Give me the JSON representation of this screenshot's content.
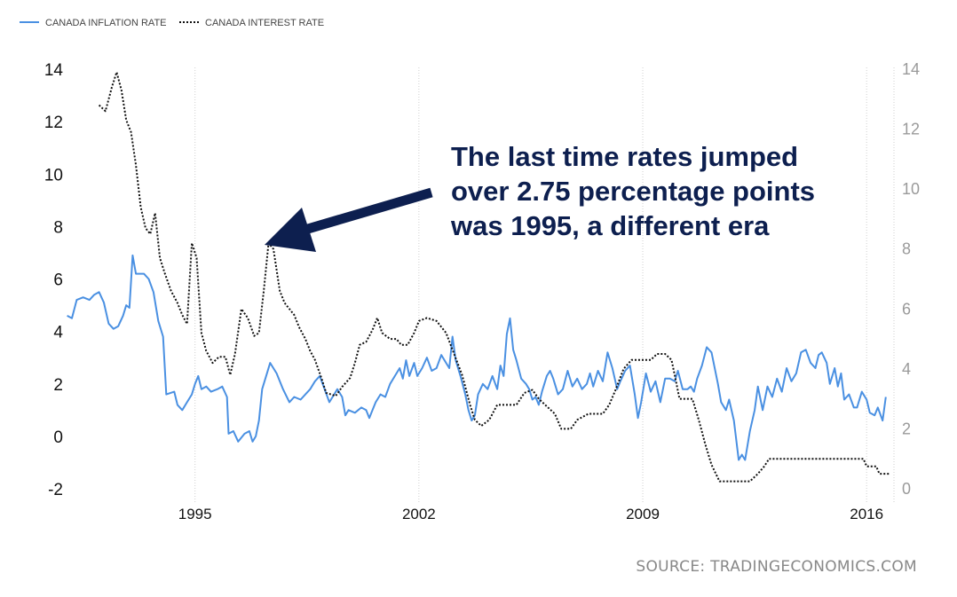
{
  "chart_data": {
    "type": "line",
    "legend_position": "top-left",
    "grid": true,
    "x_ticks": [
      "1995",
      "2002",
      "2009",
      "2016"
    ],
    "y_left": {
      "range": [
        -2,
        14
      ],
      "ticks": [
        "-2",
        "0",
        "2",
        "4",
        "6",
        "8",
        "10",
        "12",
        "14"
      ]
    },
    "y_right": {
      "range": [
        0,
        14
      ],
      "ticks": [
        "0",
        "2",
        "4",
        "6",
        "8",
        "10",
        "12",
        "14"
      ]
    },
    "x_range": [
      1990.9,
      2016.8
    ],
    "series": [
      {
        "name": "CANADA INFLATION RATE",
        "axis": "left",
        "color": "#4a90e2",
        "style": "solid",
        "points": [
          [
            1991.0,
            4.6
          ],
          [
            1991.15,
            4.5
          ],
          [
            1991.3,
            5.2
          ],
          [
            1991.5,
            5.3
          ],
          [
            1991.7,
            5.2
          ],
          [
            1991.85,
            5.4
          ],
          [
            1992.0,
            5.5
          ],
          [
            1992.15,
            5.1
          ],
          [
            1992.3,
            4.3
          ],
          [
            1992.45,
            4.1
          ],
          [
            1992.6,
            4.2
          ],
          [
            1992.75,
            4.6
          ],
          [
            1992.85,
            5.0
          ],
          [
            1992.95,
            4.9
          ],
          [
            1993.05,
            6.9
          ],
          [
            1993.15,
            6.2
          ],
          [
            1993.4,
            6.2
          ],
          [
            1993.55,
            6.0
          ],
          [
            1993.7,
            5.5
          ],
          [
            1993.85,
            4.4
          ],
          [
            1994.0,
            3.8
          ],
          [
            1994.1,
            1.6
          ],
          [
            1994.35,
            1.7
          ],
          [
            1994.45,
            1.2
          ],
          [
            1994.6,
            1.0
          ],
          [
            1994.75,
            1.3
          ],
          [
            1994.9,
            1.6
          ],
          [
            1995.0,
            2.0
          ],
          [
            1995.1,
            2.3
          ],
          [
            1995.2,
            1.8
          ],
          [
            1995.35,
            1.9
          ],
          [
            1995.5,
            1.7
          ],
          [
            1995.7,
            1.8
          ],
          [
            1995.85,
            1.9
          ],
          [
            1996.0,
            1.5
          ],
          [
            1996.05,
            0.1
          ],
          [
            1996.2,
            0.2
          ],
          [
            1996.35,
            -0.2
          ],
          [
            1996.55,
            0.1
          ],
          [
            1996.7,
            0.2
          ],
          [
            1996.8,
            -0.2
          ],
          [
            1996.9,
            0.0
          ],
          [
            1997.0,
            0.6
          ],
          [
            1997.1,
            1.8
          ],
          [
            1997.25,
            2.4
          ],
          [
            1997.35,
            2.8
          ],
          [
            1997.55,
            2.4
          ],
          [
            1997.75,
            1.8
          ],
          [
            1997.95,
            1.3
          ],
          [
            1998.1,
            1.5
          ],
          [
            1998.3,
            1.4
          ],
          [
            1998.45,
            1.6
          ],
          [
            1998.6,
            1.8
          ],
          [
            1998.75,
            2.1
          ],
          [
            1998.9,
            2.3
          ],
          [
            1999.05,
            1.8
          ],
          [
            1999.2,
            1.3
          ],
          [
            1999.35,
            1.6
          ],
          [
            1999.45,
            1.8
          ],
          [
            1999.6,
            1.5
          ],
          [
            1999.7,
            0.8
          ],
          [
            1999.8,
            1.0
          ],
          [
            2000.0,
            0.9
          ],
          [
            2000.2,
            1.1
          ],
          [
            2000.35,
            1.0
          ],
          [
            2000.45,
            0.7
          ],
          [
            2000.55,
            1.0
          ],
          [
            2000.65,
            1.3
          ],
          [
            2000.8,
            1.6
          ],
          [
            2000.95,
            1.5
          ],
          [
            2001.1,
            2.0
          ],
          [
            2001.25,
            2.3
          ],
          [
            2001.4,
            2.6
          ],
          [
            2001.5,
            2.2
          ],
          [
            2001.6,
            2.9
          ],
          [
            2001.7,
            2.3
          ],
          [
            2001.85,
            2.8
          ],
          [
            2001.95,
            2.3
          ],
          [
            2002.1,
            2.6
          ],
          [
            2002.25,
            3.0
          ],
          [
            2002.4,
            2.5
          ],
          [
            2002.55,
            2.6
          ],
          [
            2002.7,
            3.1
          ],
          [
            2002.85,
            2.8
          ],
          [
            2002.95,
            2.6
          ],
          [
            2003.05,
            3.8
          ],
          [
            2003.15,
            2.9
          ],
          [
            2003.3,
            2.3
          ],
          [
            2003.45,
            1.6
          ],
          [
            2003.55,
            1.0
          ],
          [
            2003.65,
            0.6
          ],
          [
            2003.75,
            0.8
          ],
          [
            2003.85,
            1.6
          ],
          [
            2004.0,
            2.0
          ],
          [
            2004.15,
            1.8
          ],
          [
            2004.3,
            2.3
          ],
          [
            2004.45,
            1.8
          ],
          [
            2004.55,
            2.7
          ],
          [
            2004.65,
            2.3
          ],
          [
            2004.75,
            3.9
          ],
          [
            2004.85,
            4.5
          ],
          [
            2004.95,
            3.3
          ],
          [
            2005.05,
            2.9
          ],
          [
            2005.2,
            2.2
          ],
          [
            2005.35,
            2.0
          ],
          [
            2005.45,
            1.8
          ],
          [
            2005.55,
            1.4
          ],
          [
            2005.65,
            1.5
          ],
          [
            2005.75,
            1.2
          ],
          [
            2005.85,
            1.7
          ],
          [
            2006.0,
            2.3
          ],
          [
            2006.1,
            2.5
          ],
          [
            2006.2,
            2.2
          ],
          [
            2006.35,
            1.6
          ],
          [
            2006.5,
            1.8
          ],
          [
            2006.65,
            2.5
          ],
          [
            2006.8,
            1.9
          ],
          [
            2006.95,
            2.2
          ],
          [
            2007.1,
            1.8
          ],
          [
            2007.25,
            2.0
          ],
          [
            2007.35,
            2.4
          ],
          [
            2007.45,
            1.9
          ],
          [
            2007.6,
            2.5
          ],
          [
            2007.75,
            2.1
          ],
          [
            2007.9,
            3.2
          ],
          [
            2008.05,
            2.6
          ],
          [
            2008.2,
            1.8
          ],
          [
            2008.3,
            2.1
          ],
          [
            2008.45,
            2.5
          ],
          [
            2008.6,
            2.7
          ],
          [
            2008.75,
            1.6
          ],
          [
            2008.85,
            0.7
          ],
          [
            2008.95,
            1.3
          ],
          [
            2009.1,
            2.4
          ],
          [
            2009.25,
            1.7
          ],
          [
            2009.4,
            2.1
          ],
          [
            2009.55,
            1.3
          ],
          [
            2009.7,
            2.2
          ],
          [
            2009.85,
            2.2
          ],
          [
            2010.0,
            2.1
          ],
          [
            2010.1,
            2.5
          ],
          [
            2010.25,
            1.8
          ],
          [
            2010.4,
            1.8
          ],
          [
            2010.5,
            1.9
          ],
          [
            2010.6,
            1.7
          ],
          [
            2010.7,
            2.2
          ],
          [
            2010.85,
            2.7
          ],
          [
            2011.0,
            3.4
          ],
          [
            2011.15,
            3.2
          ],
          [
            2011.35,
            2.0
          ],
          [
            2011.45,
            1.3
          ],
          [
            2011.6,
            1.0
          ],
          [
            2011.7,
            1.4
          ],
          [
            2011.85,
            0.6
          ],
          [
            2012.0,
            -0.9
          ],
          [
            2012.1,
            -0.7
          ],
          [
            2012.2,
            -0.9
          ],
          [
            2012.35,
            0.2
          ],
          [
            2012.5,
            1.0
          ],
          [
            2012.6,
            1.9
          ],
          [
            2012.75,
            1.0
          ],
          [
            2012.9,
            1.9
          ],
          [
            2013.05,
            1.5
          ],
          [
            2013.2,
            2.2
          ],
          [
            2013.35,
            1.7
          ],
          [
            2013.5,
            2.6
          ],
          [
            2013.65,
            2.1
          ],
          [
            2013.8,
            2.4
          ],
          [
            2013.95,
            3.2
          ],
          [
            2014.1,
            3.3
          ],
          [
            2014.25,
            2.8
          ],
          [
            2014.4,
            2.6
          ],
          [
            2014.5,
            3.1
          ],
          [
            2014.6,
            3.2
          ],
          [
            2014.75,
            2.8
          ],
          [
            2014.85,
            2.0
          ],
          [
            2015.0,
            2.6
          ],
          [
            2015.1,
            1.9
          ],
          [
            2015.2,
            2.4
          ],
          [
            2015.3,
            1.4
          ],
          [
            2015.45,
            1.6
          ],
          [
            2015.6,
            1.1
          ],
          [
            2015.7,
            1.1
          ],
          [
            2015.85,
            1.7
          ],
          [
            2016.0,
            1.4
          ],
          [
            2016.1,
            0.9
          ],
          [
            2016.25,
            0.8
          ],
          [
            2016.35,
            1.1
          ],
          [
            2016.5,
            0.6
          ],
          [
            2016.6,
            1.5
          ]
        ]
      },
      {
        "name": "CANADA INTEREST RATE",
        "axis": "right",
        "color": "#111111",
        "style": "dotted",
        "points": [
          [
            1992.0,
            12.8
          ],
          [
            1992.2,
            12.6
          ],
          [
            1992.4,
            13.4
          ],
          [
            1992.55,
            13.9
          ],
          [
            1992.7,
            13.3
          ],
          [
            1992.85,
            12.3
          ],
          [
            1993.0,
            11.9
          ],
          [
            1993.15,
            10.8
          ],
          [
            1993.3,
            9.4
          ],
          [
            1993.45,
            8.7
          ],
          [
            1993.6,
            8.5
          ],
          [
            1993.75,
            9.2
          ],
          [
            1993.9,
            7.7
          ],
          [
            1994.05,
            7.2
          ],
          [
            1994.25,
            6.6
          ],
          [
            1994.45,
            6.2
          ],
          [
            1994.6,
            5.8
          ],
          [
            1994.75,
            5.5
          ],
          [
            1994.9,
            8.2
          ],
          [
            1995.05,
            7.7
          ],
          [
            1995.2,
            5.2
          ],
          [
            1995.35,
            4.6
          ],
          [
            1995.55,
            4.2
          ],
          [
            1995.75,
            4.4
          ],
          [
            1995.95,
            4.4
          ],
          [
            1996.1,
            3.8
          ],
          [
            1996.25,
            4.5
          ],
          [
            1996.45,
            6.0
          ],
          [
            1996.65,
            5.7
          ],
          [
            1996.85,
            5.1
          ],
          [
            1997.0,
            5.2
          ],
          [
            1997.15,
            6.6
          ],
          [
            1997.3,
            8.2
          ],
          [
            1997.45,
            8.0
          ],
          [
            1997.65,
            6.6
          ],
          [
            1997.8,
            6.2
          ],
          [
            1997.95,
            6.0
          ],
          [
            1998.1,
            5.8
          ],
          [
            1998.25,
            5.4
          ],
          [
            1998.45,
            5.0
          ],
          [
            1998.6,
            4.6
          ],
          [
            1998.75,
            4.3
          ],
          [
            1998.95,
            3.7
          ],
          [
            1999.1,
            3.2
          ],
          [
            1999.4,
            3.1
          ],
          [
            1999.6,
            3.4
          ],
          [
            1999.85,
            3.7
          ],
          [
            2000.0,
            4.2
          ],
          [
            2000.15,
            4.8
          ],
          [
            2000.35,
            4.9
          ],
          [
            2000.55,
            5.3
          ],
          [
            2000.7,
            5.7
          ],
          [
            2000.85,
            5.2
          ],
          [
            2001.1,
            5.0
          ],
          [
            2001.3,
            5.0
          ],
          [
            2001.45,
            4.8
          ],
          [
            2001.65,
            4.8
          ],
          [
            2001.85,
            5.2
          ],
          [
            2002.0,
            5.6
          ],
          [
            2002.25,
            5.7
          ],
          [
            2002.55,
            5.6
          ],
          [
            2002.85,
            5.2
          ],
          [
            2003.1,
            4.5
          ],
          [
            2003.35,
            3.8
          ],
          [
            2003.6,
            2.8
          ],
          [
            2003.75,
            2.3
          ],
          [
            2003.95,
            2.1
          ],
          [
            2004.2,
            2.3
          ],
          [
            2004.45,
            2.8
          ],
          [
            2004.8,
            2.8
          ],
          [
            2005.05,
            2.8
          ],
          [
            2005.3,
            3.2
          ],
          [
            2005.55,
            3.3
          ],
          [
            2005.75,
            3.0
          ],
          [
            2005.95,
            2.8
          ],
          [
            2006.25,
            2.5
          ],
          [
            2006.45,
            2.0
          ],
          [
            2006.75,
            2.0
          ],
          [
            2006.95,
            2.3
          ],
          [
            2007.3,
            2.5
          ],
          [
            2007.75,
            2.5
          ],
          [
            2007.95,
            2.8
          ],
          [
            2008.15,
            3.3
          ],
          [
            2008.4,
            4.0
          ],
          [
            2008.65,
            4.3
          ],
          [
            2009.25,
            4.3
          ],
          [
            2009.45,
            4.5
          ],
          [
            2009.7,
            4.5
          ],
          [
            2009.9,
            4.3
          ],
          [
            2010.0,
            3.8
          ],
          [
            2010.15,
            3.0
          ],
          [
            2010.55,
            3.0
          ],
          [
            2010.75,
            2.3
          ],
          [
            2010.95,
            1.5
          ],
          [
            2011.15,
            0.8
          ],
          [
            2011.4,
            0.25
          ],
          [
            2012.35,
            0.25
          ],
          [
            2012.6,
            0.5
          ],
          [
            2012.8,
            0.75
          ],
          [
            2012.95,
            1.0
          ],
          [
            2015.9,
            1.0
          ],
          [
            2016.0,
            0.75
          ],
          [
            2016.3,
            0.75
          ],
          [
            2016.4,
            0.5
          ],
          [
            2016.75,
            0.5
          ]
        ]
      }
    ],
    "annotation": {
      "lines": [
        "The last time rates jumped",
        "over 2.75 percentage points",
        "was 1995, a different era"
      ],
      "arrow_target": "1995 interest rate peak"
    },
    "source": "SOURCE: TRADINGECONOMICS.COM"
  }
}
